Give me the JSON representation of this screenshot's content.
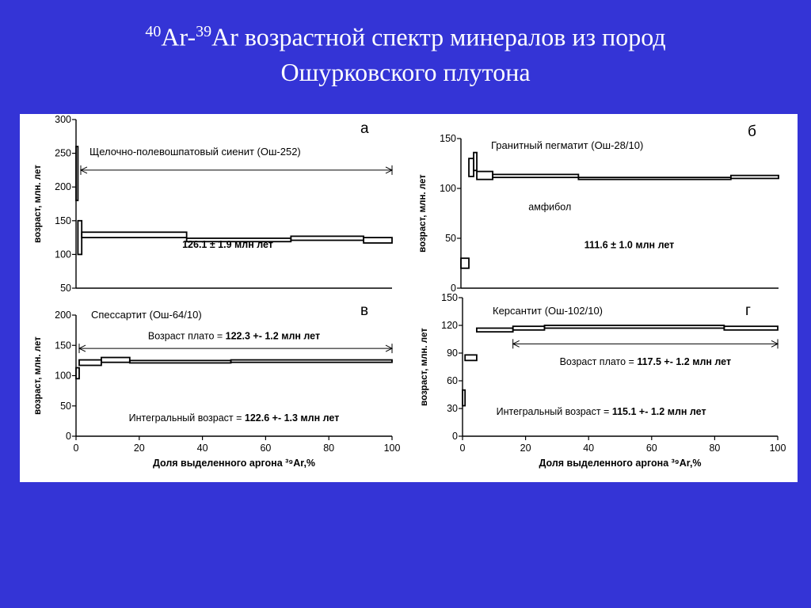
{
  "title": {
    "iso1_mass": "40",
    "iso1_symbol": "Ar-",
    "iso2_mass": "39",
    "iso2_symbol": "Ar",
    "line1_rest": " возрастной спектр минералов из пород",
    "line2": "Ошурковского плутона"
  },
  "colors": {
    "background": "#3434d6",
    "panel": "#ffffff",
    "ink": "#000000"
  },
  "chart_data": [
    {
      "id": "a",
      "type": "line",
      "step": true,
      "panel_letter": "а",
      "sample_label": "Щелочно-полевошпатовый сиенит (Ош-252)",
      "ylabel": "возраст, млн. лет",
      "xlabel": "",
      "xlim": [
        0,
        100
      ],
      "ylim": [
        50,
        300
      ],
      "yticks": [
        "300",
        "250",
        "200",
        "150",
        "100",
        "50"
      ],
      "xticks": [],
      "annotations": [
        {
          "kind": "plain",
          "text": "",
          "bold": "126.1 ± 1.9 млн лет",
          "x": 48,
          "y": 110
        }
      ],
      "arrow": {
        "x0": 1.5,
        "x1": 100,
        "y": 225
      },
      "steps": [
        {
          "x0": 0,
          "x1": 0.6,
          "lo": 180,
          "hi": 260
        },
        {
          "x0": 0.6,
          "x1": 1.8,
          "lo": 100,
          "hi": 150
        },
        {
          "x0": 1.8,
          "x1": 35,
          "lo": 125,
          "hi": 133
        },
        {
          "x0": 35,
          "x1": 68,
          "lo": 119,
          "hi": 124
        },
        {
          "x0": 68,
          "x1": 91,
          "lo": 121,
          "hi": 127
        },
        {
          "x0": 91,
          "x1": 100,
          "lo": 117,
          "hi": 125
        }
      ]
    },
    {
      "id": "b",
      "type": "line",
      "step": true,
      "panel_letter": "б",
      "sample_label": "Гранитный пегматит (Ош-28/10)",
      "ylabel": "возраст, млн. лет",
      "xlabel": "",
      "xlim": [
        0,
        100
      ],
      "ylim": [
        0,
        150
      ],
      "yticks": [
        "150",
        "100",
        "50",
        "0"
      ],
      "xticks": [],
      "annotations": [
        {
          "kind": "plain",
          "text": "амфибол",
          "bold": "",
          "x": 28,
          "y": 78
        },
        {
          "kind": "plain",
          "text": "",
          "bold": "111.6 ± 1.0 млн лет",
          "x": 53,
          "y": 40
        }
      ],
      "arrow": null,
      "steps": [
        {
          "x0": 0,
          "x1": 2.5,
          "lo": 20,
          "hi": 30
        },
        {
          "x0": 2.5,
          "x1": 4,
          "lo": 112,
          "hi": 130
        },
        {
          "x0": 4,
          "x1": 5,
          "lo": 118,
          "hi": 136
        },
        {
          "x0": 5,
          "x1": 10,
          "lo": 109,
          "hi": 117
        },
        {
          "x0": 10,
          "x1": 37,
          "lo": 111,
          "hi": 114
        },
        {
          "x0": 37,
          "x1": 85,
          "lo": 109,
          "hi": 111
        },
        {
          "x0": 85,
          "x1": 100,
          "lo": 110,
          "hi": 113
        }
      ]
    },
    {
      "id": "v",
      "type": "line",
      "step": true,
      "panel_letter": "в",
      "sample_label": "Спессартит (Ош-64/10)",
      "ylabel": "возраст, млн. лет",
      "xlabel": "Доля выделенного аргона ³⁹Ar,%",
      "xlim": [
        0,
        100
      ],
      "ylim": [
        0,
        200
      ],
      "yticks": [
        "200",
        "150",
        "100",
        "50",
        "0"
      ],
      "xticks": [
        "0",
        "20",
        "40",
        "60",
        "80",
        "100"
      ],
      "annotations": [
        {
          "kind": "plateau",
          "text": "Возраст плато = ",
          "bold": "122.3 +- 1.2 млн лет",
          "x": 50,
          "y": 160
        },
        {
          "kind": "plain",
          "text": "Интегральный возраст = ",
          "bold": "122.6 +- 1.3 млн лет",
          "x": 50,
          "y": 25
        }
      ],
      "arrow": {
        "x0": 1,
        "x1": 100,
        "y": 145
      },
      "steps": [
        {
          "x0": 0,
          "x1": 1,
          "lo": 95,
          "hi": 113
        },
        {
          "x0": 1,
          "x1": 8,
          "lo": 117,
          "hi": 126
        },
        {
          "x0": 8,
          "x1": 17,
          "lo": 122,
          "hi": 130
        },
        {
          "x0": 17,
          "x1": 49,
          "lo": 121,
          "hi": 125
        },
        {
          "x0": 49,
          "x1": 100,
          "lo": 122,
          "hi": 126
        }
      ]
    },
    {
      "id": "g",
      "type": "line",
      "step": true,
      "panel_letter": "г",
      "sample_label": "Керсантит (Ош-102/10)",
      "ylabel": "возраст, млн. лет",
      "xlabel": "Доля выделенного аргона ³⁹Ar,%",
      "xlim": [
        0,
        100
      ],
      "ylim": [
        0,
        150
      ],
      "yticks": [
        "150",
        "120",
        "90",
        "60",
        "30",
        "0"
      ],
      "xticks": [
        "0",
        "20",
        "40",
        "60",
        "80",
        "100"
      ],
      "annotations": [
        {
          "kind": "plateau",
          "text": "Возраст плато = ",
          "bold": "117.5 +- 1.2 млн лет",
          "x": 58,
          "y": 77
        },
        {
          "kind": "plain",
          "text": "Интегральный возраст = ",
          "bold": "115.1 +- 1.2 млн лет",
          "x": 44,
          "y": 23
        }
      ],
      "arrow": {
        "x0": 16,
        "x1": 100,
        "y": 100
      },
      "steps": [
        {
          "x0": 0,
          "x1": 0.8,
          "lo": 33,
          "hi": 50
        },
        {
          "x0": 0.8,
          "x1": 4.5,
          "lo": 82,
          "hi": 88
        },
        {
          "x0": 4.5,
          "x1": 16,
          "lo": 113,
          "hi": 117
        },
        {
          "x0": 16,
          "x1": 26,
          "lo": 115,
          "hi": 119
        },
        {
          "x0": 26,
          "x1": 83,
          "lo": 117,
          "hi": 120
        },
        {
          "x0": 83,
          "x1": 100,
          "lo": 115,
          "hi": 119
        }
      ]
    }
  ]
}
